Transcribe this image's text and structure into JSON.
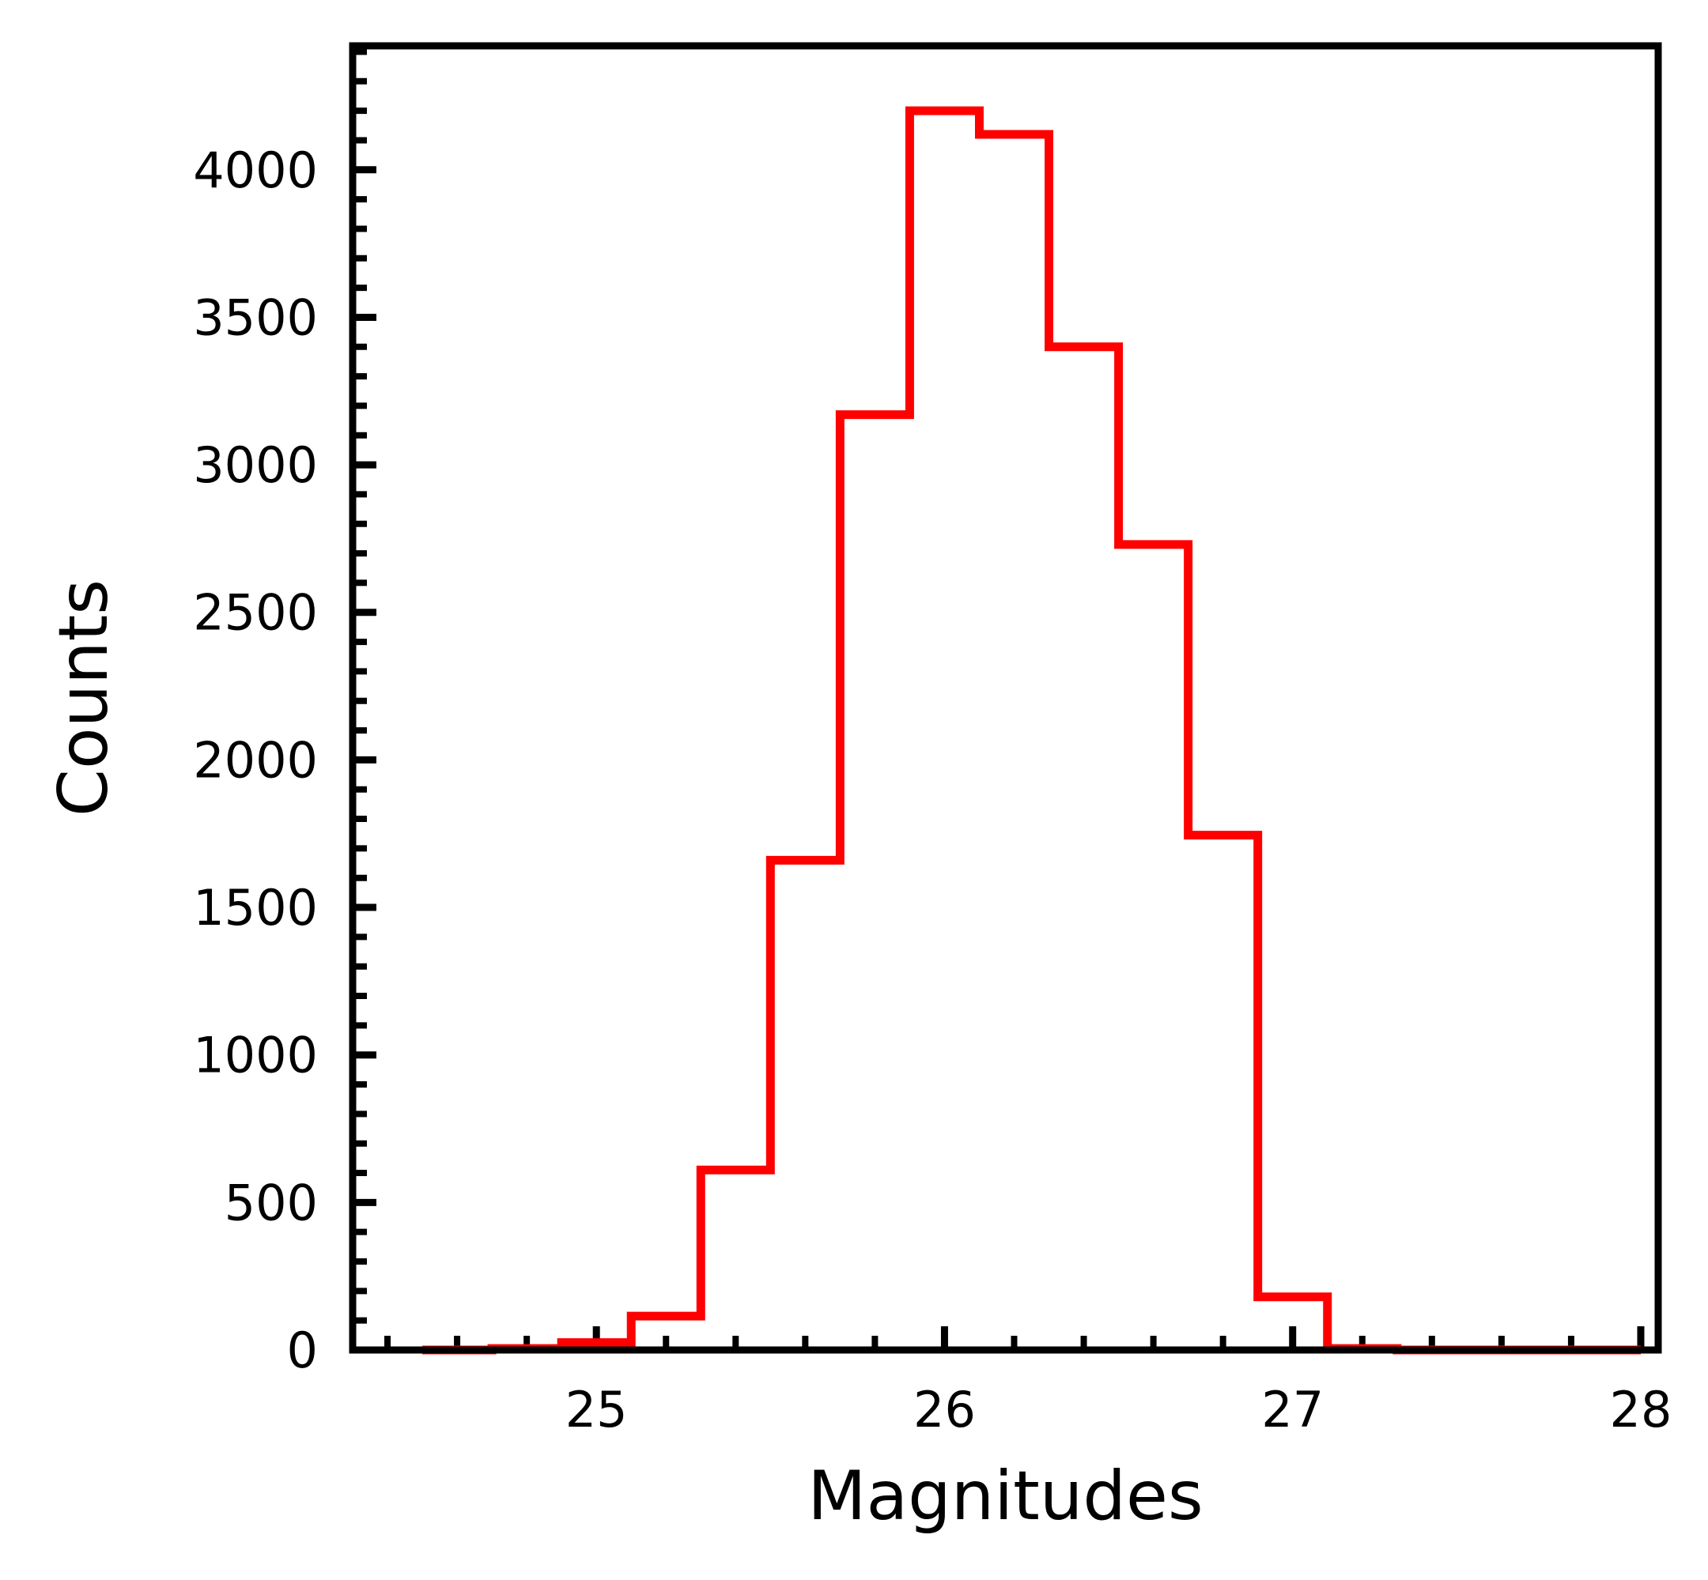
{
  "chart_data": {
    "type": "histogram",
    "histtype": "step",
    "xlabel": "Magnitudes",
    "ylabel": "Counts",
    "xlim": [
      24.3,
      28.05
    ],
    "ylim": [
      0,
      4420
    ],
    "grid": false,
    "legend": false,
    "line_color": "#ff0000",
    "bins": [
      {
        "x0": 24.5,
        "x1": 24.7,
        "count": 0
      },
      {
        "x0": 24.7,
        "x1": 24.9,
        "count": 5
      },
      {
        "x0": 24.9,
        "x1": 25.1,
        "count": 25
      },
      {
        "x0": 25.1,
        "x1": 25.3,
        "count": 115
      },
      {
        "x0": 25.3,
        "x1": 25.5,
        "count": 610
      },
      {
        "x0": 25.5,
        "x1": 25.7,
        "count": 1660
      },
      {
        "x0": 25.7,
        "x1": 25.9,
        "count": 3170
      },
      {
        "x0": 25.9,
        "x1": 26.1,
        "count": 4200
      },
      {
        "x0": 26.1,
        "x1": 26.3,
        "count": 4120
      },
      {
        "x0": 26.3,
        "x1": 26.5,
        "count": 3400
      },
      {
        "x0": 26.5,
        "x1": 26.7,
        "count": 2730
      },
      {
        "x0": 26.7,
        "x1": 26.9,
        "count": 1745
      },
      {
        "x0": 26.9,
        "x1": 27.1,
        "count": 180
      },
      {
        "x0": 27.1,
        "x1": 27.3,
        "count": 5
      },
      {
        "x0": 27.3,
        "x1": 27.5,
        "count": 0
      },
      {
        "x0": 27.5,
        "x1": 27.7,
        "count": 0
      },
      {
        "x0": 27.7,
        "x1": 27.9,
        "count": 0
      },
      {
        "x0": 27.9,
        "x1": 28.0,
        "count": 0
      }
    ],
    "x_ticks": [
      {
        "value": 25,
        "label": "25"
      },
      {
        "value": 26,
        "label": "26"
      },
      {
        "value": 27,
        "label": "27"
      },
      {
        "value": 28,
        "label": "28"
      }
    ],
    "x_minor_step": 0.2,
    "y_ticks": [
      {
        "value": 0,
        "label": "0"
      },
      {
        "value": 500,
        "label": "500"
      },
      {
        "value": 1000,
        "label": "1000"
      },
      {
        "value": 1500,
        "label": "1500"
      },
      {
        "value": 2000,
        "label": "2000"
      },
      {
        "value": 2500,
        "label": "2500"
      },
      {
        "value": 3000,
        "label": "3000"
      },
      {
        "value": 3500,
        "label": "3500"
      },
      {
        "value": 4000,
        "label": "4000"
      }
    ],
    "y_minor_step": 100
  }
}
